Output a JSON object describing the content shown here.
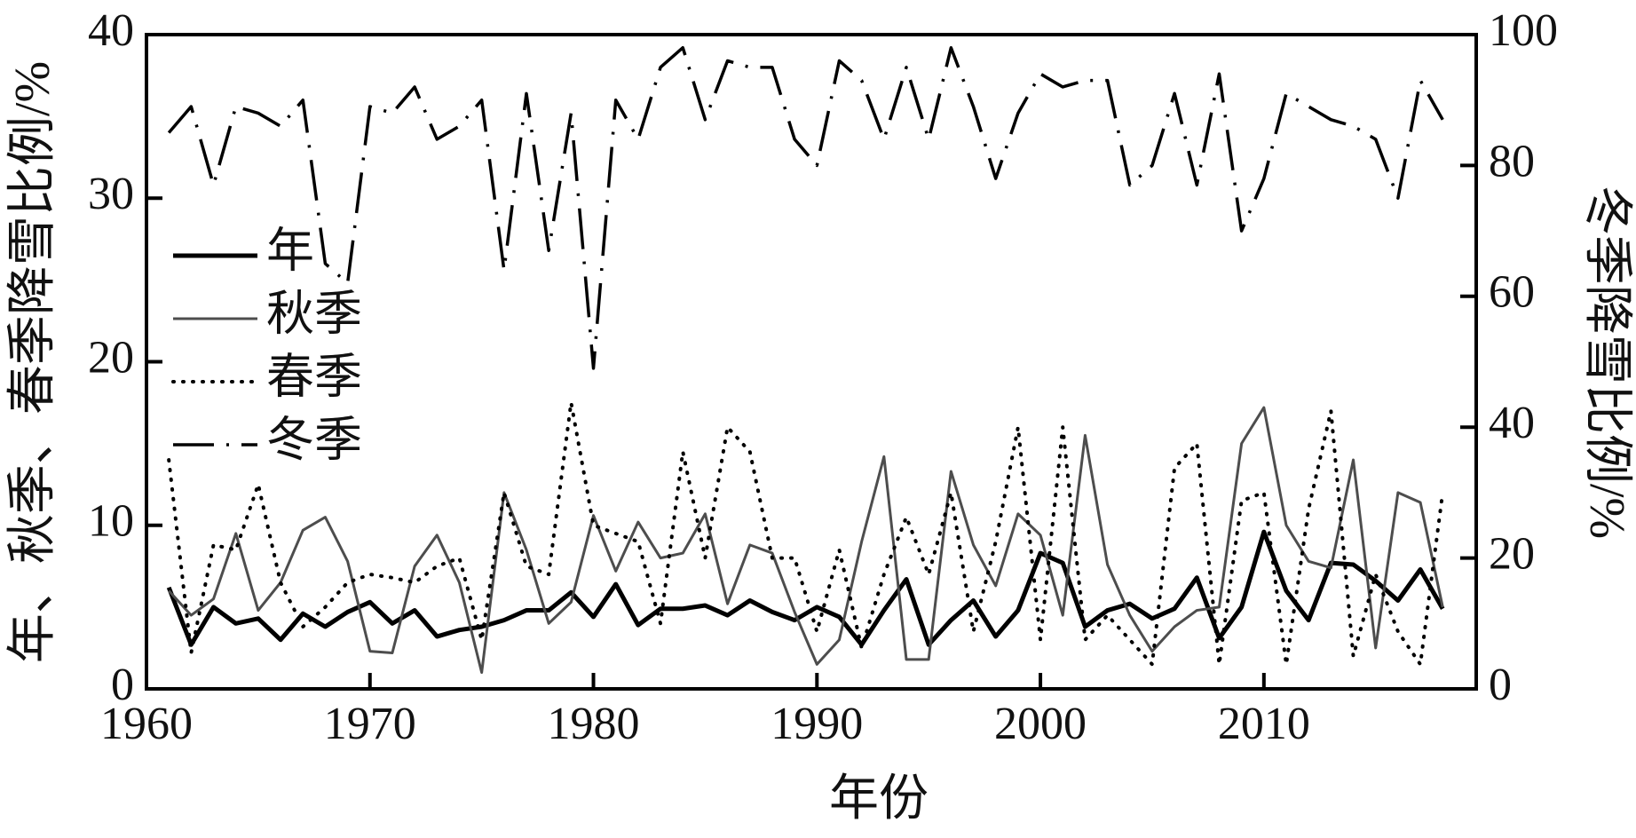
{
  "chart_data": {
    "type": "line",
    "x_label": "年份",
    "y_label": "年、秋季、春季降雪比例/%",
    "y2_label": "冬季降雪比例/%",
    "x": [
      1961,
      1962,
      1963,
      1964,
      1965,
      1966,
      1967,
      1968,
      1969,
      1970,
      1971,
      1972,
      1973,
      1974,
      1975,
      1976,
      1977,
      1978,
      1979,
      1980,
      1981,
      1982,
      1983,
      1984,
      1985,
      1986,
      1987,
      1988,
      1989,
      1990,
      1991,
      1992,
      1993,
      1994,
      1995,
      1996,
      1997,
      1998,
      1999,
      2000,
      2001,
      2002,
      2003,
      2004,
      2005,
      2006,
      2007,
      2008,
      2009,
      2010,
      2011,
      2012,
      2013,
      2014,
      2015,
      2016,
      2017,
      2018
    ],
    "xlim": [
      1960,
      2019.5
    ],
    "xticks": [
      1960,
      1970,
      1980,
      1990,
      2000,
      2010
    ],
    "ylim": [
      0,
      40
    ],
    "yticks": [
      0,
      10,
      20,
      30,
      40
    ],
    "y2lim": [
      0,
      100
    ],
    "y2ticks": [
      0,
      20,
      40,
      60,
      80,
      100
    ],
    "legend": "upper left",
    "series": [
      {
        "name": "年",
        "color": "#000000",
        "style": "solid",
        "width": 5,
        "values": [
          6.2,
          2.7,
          5.0,
          4.0,
          4.3,
          3.0,
          4.6,
          3.8,
          4.7,
          5.3,
          4.0,
          4.8,
          3.2,
          3.6,
          3.8,
          4.2,
          4.8,
          4.8,
          5.9,
          4.4,
          6.4,
          3.9,
          4.9,
          4.9,
          5.1,
          4.5,
          5.4,
          4.7,
          4.2,
          5.0,
          4.4,
          2.7,
          4.8,
          6.7,
          2.7,
          4.2,
          5.4,
          3.2,
          4.8,
          8.3,
          7.7,
          3.8,
          4.8,
          5.2,
          4.3,
          4.9,
          6.8,
          3.1,
          5.0,
          9.6,
          6.0,
          4.2,
          7.7,
          7.6,
          6.6,
          5.4,
          7.3,
          4.9
        ]
      },
      {
        "name": "秋季",
        "color": "#4d4d4d",
        "style": "solid",
        "width": 3,
        "values": [
          6.0,
          4.5,
          5.5,
          9.5,
          4.8,
          6.5,
          9.7,
          10.5,
          7.8,
          2.3,
          2.2,
          7.5,
          9.4,
          6.5,
          1.0,
          12.0,
          8.5,
          4.0,
          5.3,
          10.6,
          7.2,
          10.2,
          8.0,
          8.3,
          10.7,
          5.2,
          8.8,
          8.3,
          4.7,
          1.5,
          3.0,
          9.0,
          14.2,
          1.8,
          1.8,
          13.3,
          8.8,
          6.3,
          10.7,
          9.4,
          4.5,
          15.5,
          7.6,
          4.5,
          2.3,
          3.8,
          4.8,
          5.0,
          15.0,
          17.2,
          10.0,
          7.8,
          7.4,
          14.0,
          2.5,
          12.0,
          11.4,
          5.0
        ]
      },
      {
        "name": "春季",
        "color": "#000000",
        "style": "dotted",
        "width": 4,
        "values": [
          14.0,
          2.2,
          8.8,
          8.5,
          12.5,
          6.5,
          3.8,
          5.0,
          6.5,
          7.0,
          6.8,
          6.5,
          7.5,
          8.0,
          3.0,
          12.0,
          7.5,
          7.0,
          17.5,
          10.0,
          9.5,
          9.0,
          4.0,
          14.5,
          8.0,
          16.0,
          14.5,
          8.0,
          8.0,
          3.5,
          8.5,
          2.5,
          7.0,
          10.5,
          7.0,
          12.0,
          3.5,
          9.0,
          16.0,
          3.0,
          16.0,
          3.0,
          4.5,
          3.0,
          1.5,
          13.5,
          15.0,
          1.5,
          11.5,
          12.0,
          1.5,
          11.0,
          17.0,
          2.0,
          7.0,
          3.5,
          1.5,
          12.0
        ]
      },
      {
        "name": "冬季",
        "color": "#000000",
        "style": "dashdot",
        "width": 3.5,
        "axis": "y2",
        "values": [
          85,
          89,
          77,
          89,
          88,
          86,
          90,
          65,
          62,
          89,
          88,
          92,
          84,
          86,
          90,
          64,
          91,
          67,
          88,
          49,
          90,
          84,
          95,
          98,
          87,
          96,
          95,
          95,
          84,
          80,
          96,
          93,
          84,
          95,
          84,
          98,
          89,
          78,
          88,
          94,
          92,
          93,
          93,
          77,
          80,
          91,
          77,
          94,
          70,
          78,
          91,
          89,
          87,
          86,
          84,
          75,
          93,
          87
        ]
      }
    ]
  }
}
